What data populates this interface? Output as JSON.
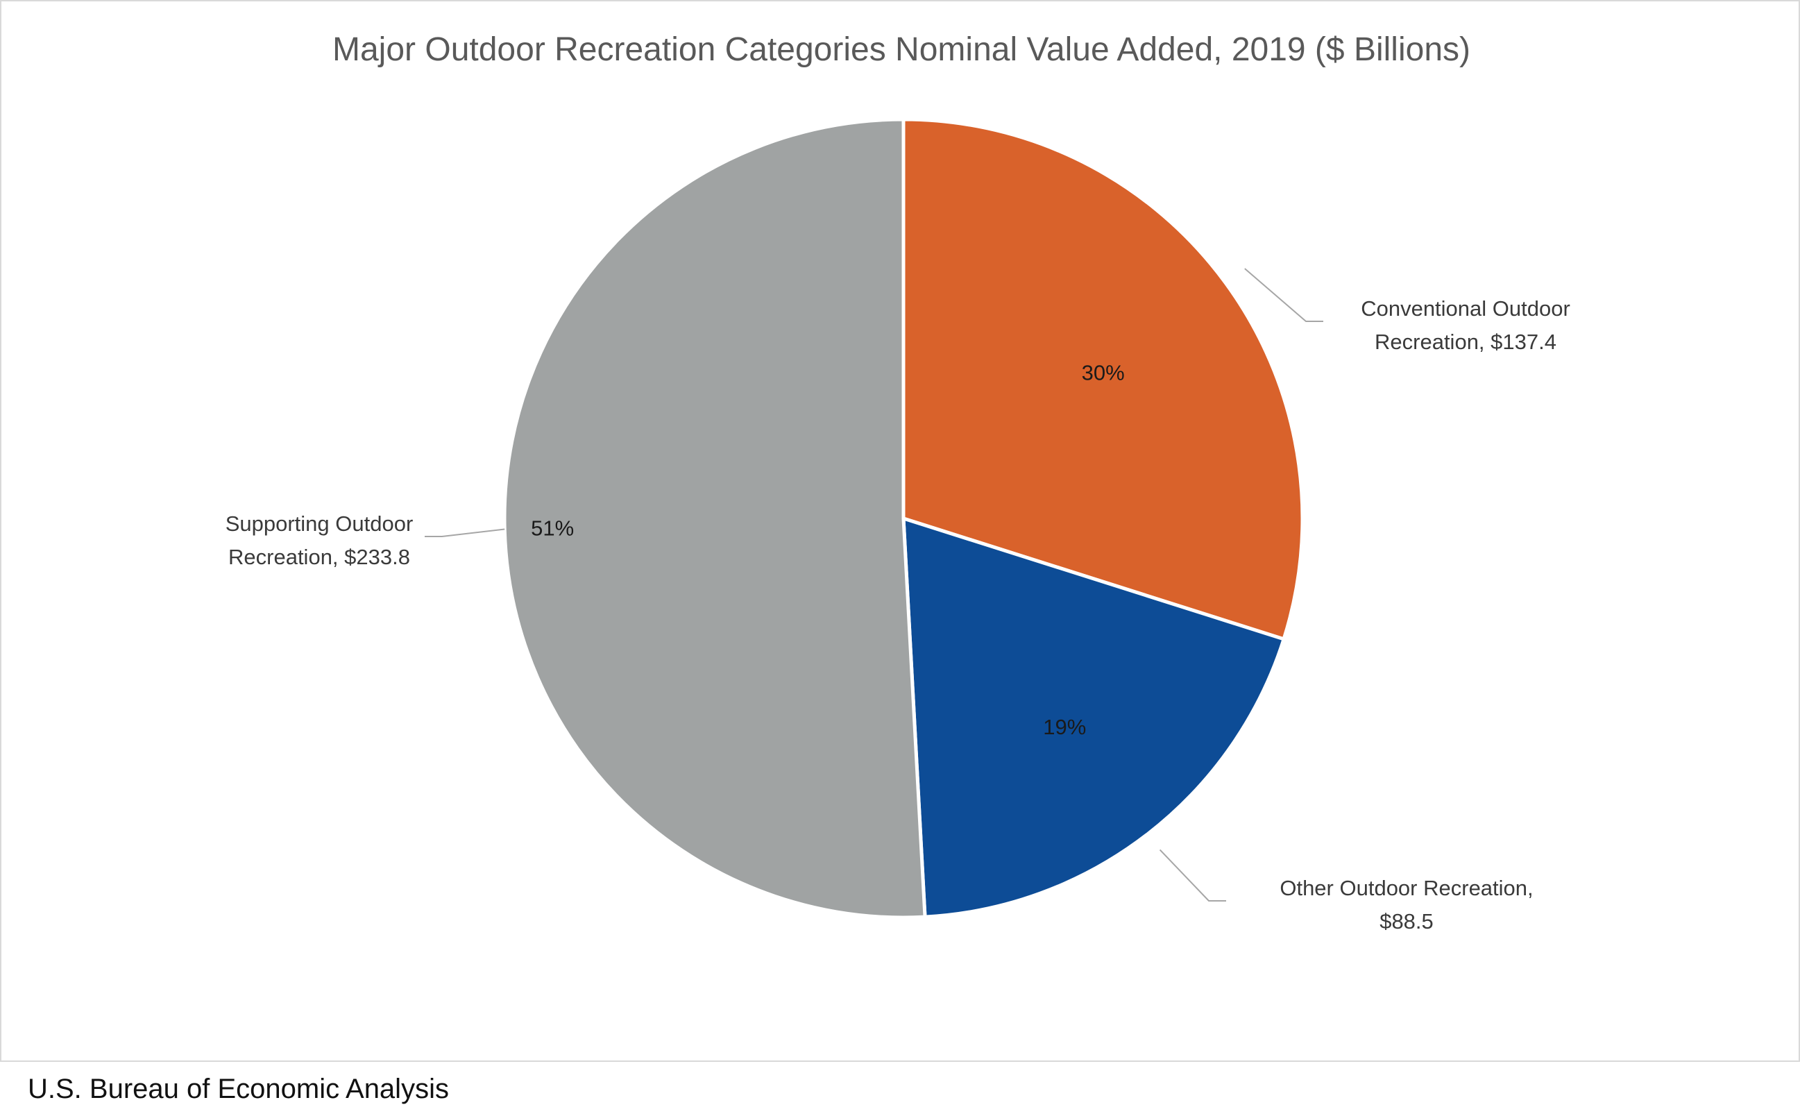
{
  "chart_data": {
    "type": "pie",
    "title": "Major Outdoor Recreation Categories Nominal Value Added, 2019 ($ Billions)",
    "slices": [
      {
        "name": "Conventional Outdoor Recreation",
        "value": 137.4,
        "percent_label": "30%",
        "label_lines": [
          "Conventional Outdoor",
          "Recreation, $137.4"
        ],
        "color": "#D9622B"
      },
      {
        "name": "Other Outdoor Recreation",
        "value": 88.5,
        "percent_label": "19%",
        "label_lines": [
          "Other Outdoor Recreation,",
          "$88.5"
        ],
        "color": "#0D4C96"
      },
      {
        "name": "Supporting Outdoor Recreation",
        "value": 233.8,
        "percent_label": "51%",
        "label_lines": [
          "Supporting Outdoor",
          "Recreation, $233.8"
        ],
        "color": "#A0A3A3"
      }
    ],
    "start_angle": "12 o'clock",
    "direction": "clockwise"
  },
  "source": "U.S. Bureau of Economic Analysis"
}
